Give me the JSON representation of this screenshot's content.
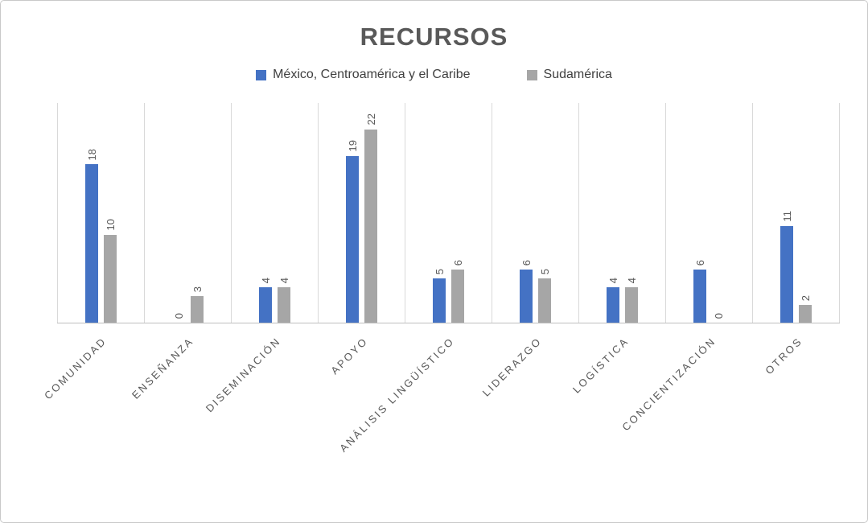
{
  "chart_data": {
    "type": "bar",
    "title": "RECURSOS",
    "categories": [
      "COMUNIDAD",
      "ENSEÑANZA",
      "DISEMINACIÓN",
      "APOYO",
      "ANÁLISIS LINGÜÍSTICO",
      "LIDERAZGO",
      "LOGÍSTICA",
      "CONCIENTIZACIÓN",
      "OTROS"
    ],
    "series": [
      {
        "name": "México, Centroamérica y el Caribe",
        "color": "#4472C4",
        "values": [
          18,
          0,
          4,
          19,
          5,
          6,
          4,
          6,
          11
        ]
      },
      {
        "name": "Sudamérica",
        "color": "#A6A6A6",
        "values": [
          10,
          3,
          4,
          22,
          6,
          5,
          4,
          0,
          2
        ]
      }
    ],
    "xlabel": "",
    "ylabel": "",
    "ylim": [
      0,
      25
    ],
    "grid": "vertical category separators only",
    "legend_position": "top",
    "data_labels": "values rotated 90° above each bar",
    "category_label_rotation": -45,
    "colors": {
      "title_text": "#595959",
      "label_text": "#595959",
      "gridline": "#d9d9d9",
      "axis_line": "#bfbfbf"
    }
  }
}
